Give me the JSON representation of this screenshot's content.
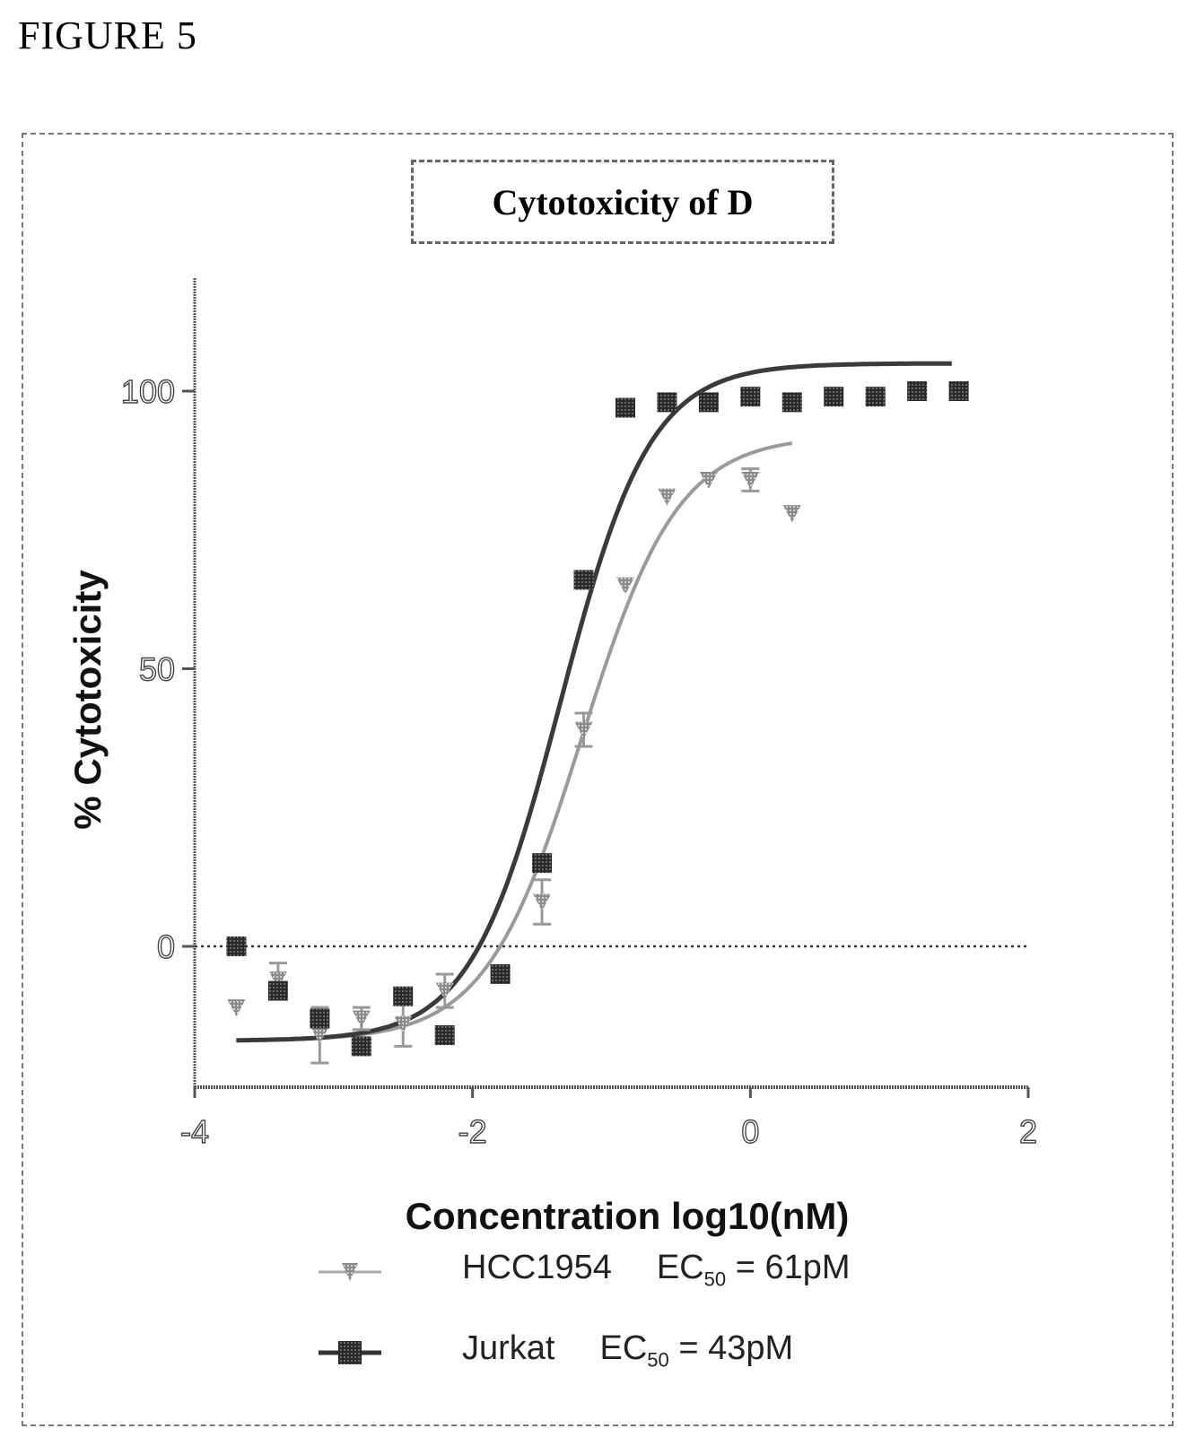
{
  "figure_label": "FIGURE 5",
  "chart_data": {
    "type": "scatter",
    "title": "Cytotoxicity of D",
    "xlabel": "Concentration log10(nM)",
    "ylabel": "% Cytotoxicity",
    "xlim": [
      -4,
      2
    ],
    "ylim": [
      -25,
      120
    ],
    "x_ticks": [
      -4,
      -2,
      0,
      2
    ],
    "x_tick_labels": [
      "-4",
      "-2",
      "0",
      "2"
    ],
    "y_ticks": [
      0,
      50,
      100
    ],
    "y_tick_labels": [
      "0",
      "50",
      "100"
    ],
    "reference_line_y": 0,
    "grid": false,
    "legend_position": "bottom",
    "series": [
      {
        "name": "HCC1954",
        "ec50_label": "EC",
        "ec50_sub": "50",
        "ec50_value": " = 61pM",
        "marker": "triangle-down",
        "color": "#9a9a9a",
        "x": [
          -3.7,
          -3.4,
          -3.1,
          -2.8,
          -2.5,
          -2.2,
          -1.5,
          -1.2,
          -0.9,
          -0.6,
          -0.3,
          0.0,
          0.3
        ],
        "y": [
          -11,
          -6,
          -16,
          -13,
          -14,
          -8,
          8,
          39,
          65,
          81,
          84,
          84,
          78
        ],
        "err": [
          1,
          3,
          5,
          2,
          4,
          3,
          4,
          3,
          1,
          1,
          1,
          2,
          1
        ],
        "curve": {
          "bottom": -17,
          "top": 92,
          "logEC50": -1.214,
          "hill": 1.25,
          "x_range": [
            -3.7,
            0.3
          ]
        }
      },
      {
        "name": "Jurkat",
        "ec50_label": "EC",
        "ec50_sub": "50",
        "ec50_value": " = 43pM",
        "marker": "square",
        "color": "#3a3a3a",
        "x": [
          -3.7,
          -3.4,
          -3.1,
          -2.8,
          -2.5,
          -2.2,
          -1.8,
          -1.5,
          -1.2,
          -0.9,
          -0.6,
          -0.3,
          0.0,
          0.3,
          0.6,
          0.9,
          1.2,
          1.5
        ],
        "y": [
          0,
          -8,
          -13,
          -18,
          -9,
          -16,
          -5,
          15,
          66,
          97,
          98,
          98,
          99,
          98,
          99,
          99,
          100,
          100
        ],
        "curve": {
          "bottom": -17,
          "top": 105,
          "logEC50": -1.367,
          "hill": 1.35,
          "x_range": [
            -3.7,
            1.45
          ]
        }
      }
    ]
  }
}
